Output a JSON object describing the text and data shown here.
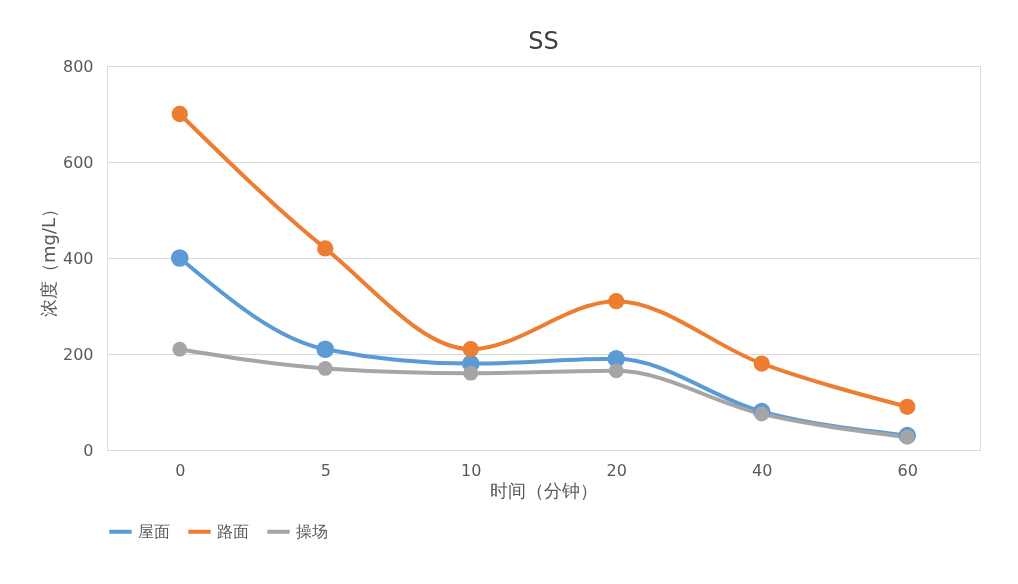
{
  "chart_data": {
    "type": "line",
    "title": "SS",
    "xlabel": "时间（分钟）",
    "ylabel": "浓度（mg/L）",
    "categories": [
      "0",
      "5",
      "10",
      "20",
      "40",
      "60"
    ],
    "series": [
      {
        "name": "屋面",
        "color": "#5b9bd5",
        "values": [
          400,
          210,
          180,
          190,
          80,
          30
        ]
      },
      {
        "name": "路面",
        "color": "#ed7d31",
        "values": [
          700,
          420,
          210,
          310,
          180,
          90
        ]
      },
      {
        "name": "操场",
        "color": "#a5a5a5",
        "values": [
          210,
          170,
          160,
          165,
          75,
          27
        ]
      }
    ],
    "ylim": [
      0,
      800
    ],
    "yticks": [
      0,
      200,
      400,
      600,
      800
    ],
    "grid": "y",
    "legend": "bottom",
    "marker": "circle",
    "line_style": "solid"
  }
}
